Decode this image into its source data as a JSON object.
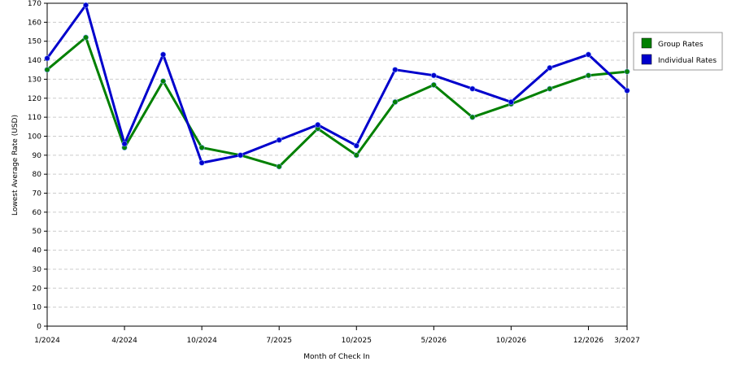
{
  "chart_data": {
    "type": "line",
    "xlabel": "Month of Check In",
    "ylabel": "Lowest Average Rate (USD)",
    "ylim": [
      0,
      170
    ],
    "y_ticks": [
      0,
      10,
      20,
      30,
      40,
      50,
      60,
      70,
      80,
      90,
      100,
      110,
      120,
      130,
      140,
      150,
      160,
      170
    ],
    "x_count": 16,
    "x_tick_labels": [
      {
        "index": 0,
        "label": "1/2024"
      },
      {
        "index": 2,
        "label": "4/2024"
      },
      {
        "index": 4,
        "label": "10/2024"
      },
      {
        "index": 6,
        "label": "7/2025"
      },
      {
        "index": 8,
        "label": "10/2025"
      },
      {
        "index": 10,
        "label": "5/2026"
      },
      {
        "index": 12,
        "label": "10/2026"
      },
      {
        "index": 14,
        "label": "12/2026"
      },
      {
        "index": 15,
        "label": "3/2027"
      }
    ],
    "grid": true,
    "legend_position": "right",
    "series": [
      {
        "name": "Group Rates",
        "color": "#008000",
        "values": [
          135,
          152,
          94,
          129,
          94,
          90,
          84,
          104,
          90,
          118,
          127,
          110,
          117,
          125,
          132,
          134
        ]
      },
      {
        "name": "Individual Rates",
        "color": "#0000cc",
        "values": [
          141,
          169,
          96,
          143,
          86,
          90,
          98,
          106,
          95,
          135,
          132,
          125,
          118,
          136,
          143,
          124
        ]
      }
    ]
  }
}
